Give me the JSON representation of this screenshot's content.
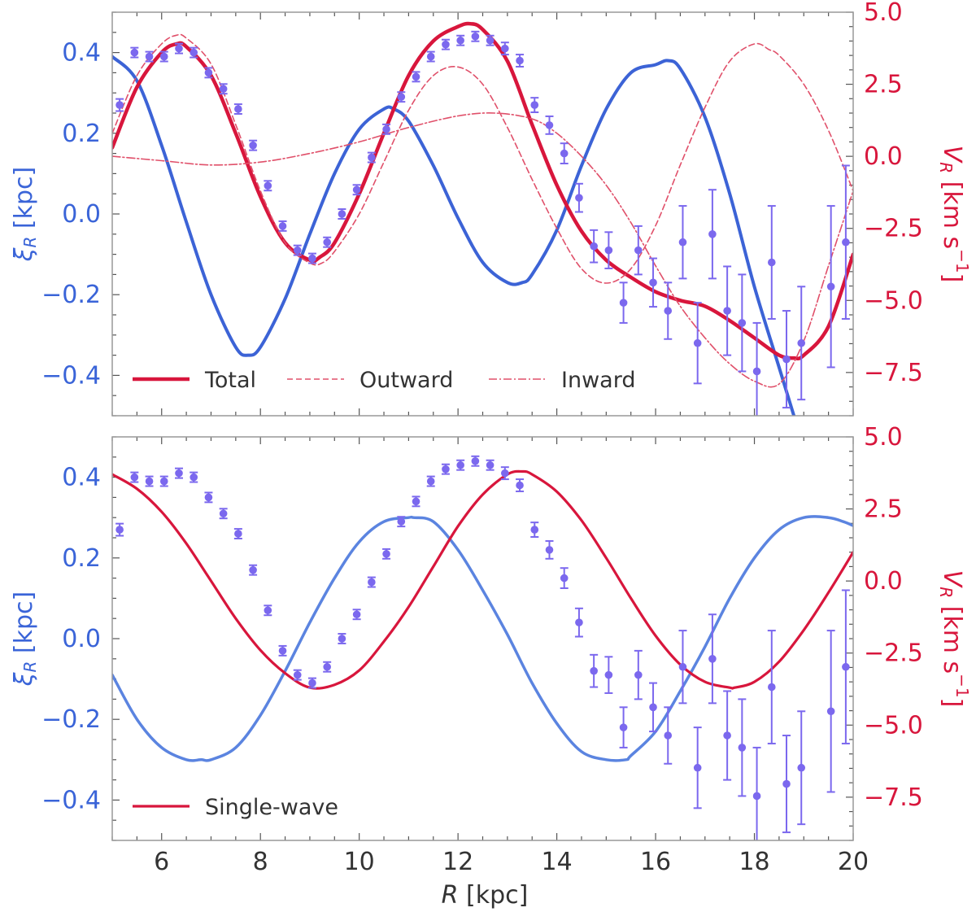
{
  "colors": {
    "xi_axis": "#3a64d8",
    "vr_axis": "#d8163c",
    "data_points": "#7b68ee",
    "xi_line": "#3c63d6",
    "xi_line_single": "#5b84e0",
    "vr_total": "#d8163c",
    "vr_components": "#e0506a",
    "text": "#333333",
    "frame": "#999999"
  },
  "chart_data": [
    {
      "type": "line",
      "panel": "top",
      "xlim": [
        5,
        20
      ],
      "ylim_left": [
        -0.5,
        0.5
      ],
      "ylim_right": [
        -9.0,
        5.0
      ],
      "ylabel_left": "ξR [kpc]",
      "ylabel_right": "VR [km s−1]",
      "xlabel": "",
      "left_ticks": [
        "0.4",
        "0.2",
        "0.0",
        "−0.2",
        "−0.4"
      ],
      "right_ticks": [
        "5.0",
        "2.5",
        "0.0",
        "−2.5",
        "−5.0",
        "−7.5"
      ],
      "legend": {
        "placement": "bottom-left",
        "entries": [
          "Total",
          "Outward",
          "Inward"
        ]
      },
      "series": [
        {
          "name": "",
          "axis": "left",
          "style": "solid",
          "width": 4,
          "x": [
            5.0,
            5.5,
            6.0,
            6.5,
            7.0,
            7.5,
            7.75,
            8.0,
            8.5,
            9.0,
            9.5,
            10.0,
            10.5,
            10.7,
            11.0,
            11.5,
            12.0,
            12.5,
            13.0,
            13.3,
            13.5,
            14.0,
            14.5,
            15.0,
            15.5,
            16.0,
            16.25,
            16.5,
            17.0,
            17.5,
            18.0,
            18.5,
            18.8
          ],
          "values": [
            0.39,
            0.33,
            0.17,
            -0.02,
            -0.2,
            -0.33,
            -0.35,
            -0.33,
            -0.21,
            -0.05,
            0.1,
            0.21,
            0.26,
            0.26,
            0.23,
            0.12,
            -0.01,
            -0.12,
            -0.17,
            -0.17,
            -0.15,
            -0.04,
            0.12,
            0.26,
            0.35,
            0.37,
            0.38,
            0.36,
            0.24,
            0.05,
            -0.18,
            -0.38,
            -0.5
          ]
        },
        {
          "name": "Total",
          "axis": "right",
          "style": "solid",
          "width": 4.5,
          "x": [
            5.0,
            5.5,
            6.0,
            6.3,
            6.5,
            7.0,
            7.5,
            8.0,
            8.5,
            9.0,
            9.2,
            9.5,
            10.0,
            10.5,
            11.0,
            11.5,
            12.0,
            12.25,
            12.5,
            13.0,
            13.5,
            14.0,
            14.5,
            15.0,
            15.5,
            16.0,
            16.5,
            17.0,
            17.5,
            18.0,
            18.5,
            18.8,
            19.0,
            19.5,
            20.0
          ],
          "values": [
            0.3,
            2.4,
            3.6,
            3.9,
            3.8,
            2.8,
            0.8,
            -1.4,
            -3.0,
            -3.6,
            -3.5,
            -3.0,
            -1.3,
            0.8,
            2.8,
            4.0,
            4.5,
            4.6,
            4.4,
            3.3,
            1.1,
            -1.0,
            -2.6,
            -3.6,
            -4.2,
            -4.7,
            -5.0,
            -5.2,
            -5.7,
            -6.3,
            -6.9,
            -7.0,
            -6.9,
            -5.9,
            -3.4
          ]
        },
        {
          "name": "Outward",
          "axis": "right",
          "style": "dashed",
          "width": 1.6,
          "x": [
            5.0,
            5.5,
            6.0,
            6.3,
            6.5,
            7.0,
            7.5,
            8.0,
            8.5,
            9.0,
            9.25,
            9.5,
            10.0,
            10.5,
            11.0,
            11.5,
            12.0,
            12.5,
            13.0,
            13.5,
            14.0,
            14.5,
            15.0,
            15.5,
            16.0,
            16.5,
            17.0,
            17.5,
            18.0,
            18.3,
            18.5,
            19.0,
            19.5,
            20.0
          ],
          "values": [
            0.8,
            2.8,
            3.9,
            4.2,
            4.1,
            3.2,
            1.1,
            -1.2,
            -3.0,
            -3.7,
            -3.7,
            -3.3,
            -2.0,
            -0.2,
            1.6,
            2.8,
            3.1,
            2.5,
            1.0,
            -0.8,
            -2.5,
            -3.9,
            -4.4,
            -3.9,
            -2.4,
            -0.3,
            1.7,
            3.3,
            3.9,
            3.7,
            3.5,
            2.5,
            0.9,
            -1.2
          ]
        },
        {
          "name": "Inward",
          "axis": "right",
          "style": "dashdot",
          "width": 1.6,
          "x": [
            5.0,
            6.0,
            7.0,
            8.0,
            9.0,
            10.0,
            11.0,
            12.0,
            12.75,
            13.5,
            14.0,
            14.5,
            15.0,
            15.5,
            16.0,
            16.5,
            17.0,
            17.5,
            18.0,
            18.5,
            19.0,
            19.5,
            20.0
          ],
          "values": [
            0.0,
            -0.15,
            -0.3,
            -0.2,
            0.1,
            0.5,
            1.0,
            1.4,
            1.5,
            1.3,
            0.8,
            0.0,
            -1.0,
            -2.3,
            -3.8,
            -5.2,
            -6.3,
            -7.2,
            -7.8,
            -7.9,
            -6.4,
            -3.8,
            -1.2
          ]
        },
        {
          "name": "",
          "axis": "left",
          "style": "points",
          "x": [
            5.15,
            5.45,
            5.75,
            6.05,
            6.35,
            6.65,
            6.95,
            7.25,
            7.55,
            7.85,
            8.15,
            8.45,
            8.75,
            9.05,
            9.35,
            9.65,
            9.95,
            10.25,
            10.55,
            10.85,
            11.15,
            11.45,
            11.75,
            12.05,
            12.35,
            12.65,
            12.95,
            13.25,
            13.55,
            13.85,
            14.15,
            14.45,
            14.75,
            15.05,
            15.35,
            15.65,
            15.95,
            16.25,
            16.55,
            16.85,
            17.15,
            17.45,
            17.75,
            18.05,
            18.35,
            18.65,
            18.95,
            19.55,
            19.85
          ],
          "values": [
            0.27,
            0.4,
            0.39,
            0.39,
            0.41,
            0.4,
            0.35,
            0.31,
            0.26,
            0.17,
            0.07,
            -0.03,
            -0.09,
            -0.11,
            -0.07,
            0.0,
            0.06,
            0.14,
            0.21,
            0.29,
            0.34,
            0.39,
            0.42,
            0.43,
            0.44,
            0.43,
            0.41,
            0.38,
            0.27,
            0.22,
            0.15,
            0.04,
            -0.08,
            -0.09,
            -0.22,
            -0.09,
            -0.17,
            -0.24,
            -0.07,
            -0.32,
            -0.05,
            -0.24,
            -0.27,
            -0.39,
            -0.12,
            -0.36,
            -0.32,
            -0.18,
            -0.07
          ],
          "errors": [
            0.015,
            0.012,
            0.012,
            0.012,
            0.012,
            0.012,
            0.012,
            0.012,
            0.012,
            0.012,
            0.012,
            0.012,
            0.012,
            0.012,
            0.012,
            0.012,
            0.012,
            0.012,
            0.012,
            0.012,
            0.012,
            0.012,
            0.012,
            0.012,
            0.012,
            0.012,
            0.015,
            0.015,
            0.018,
            0.022,
            0.025,
            0.035,
            0.04,
            0.045,
            0.05,
            0.06,
            0.06,
            0.07,
            0.09,
            0.1,
            0.11,
            0.11,
            0.12,
            0.12,
            0.14,
            0.12,
            0.14,
            0.2,
            0.19
          ]
        }
      ]
    },
    {
      "type": "line",
      "panel": "bottom",
      "xlim": [
        5,
        20
      ],
      "ylim_left": [
        -0.5,
        0.5
      ],
      "ylim_right": [
        -9.0,
        5.0
      ],
      "ylabel_left": "ξR [kpc]",
      "ylabel_right": "VR [km s−1]",
      "xlabel": "R [kpc]",
      "x_ticks": [
        "6",
        "8",
        "10",
        "12",
        "14",
        "16",
        "18",
        "20"
      ],
      "left_ticks": [
        "0.4",
        "0.2",
        "0.0",
        "−0.2",
        "−0.4"
      ],
      "right_ticks": [
        "5.0",
        "2.5",
        "0.0",
        "−2.5",
        "−5.0",
        "−7.5"
      ],
      "legend": {
        "placement": "bottom-left",
        "entries": [
          "Single-wave"
        ]
      },
      "series": [
        {
          "name": "",
          "axis": "left",
          "style": "solid",
          "width": 3.5,
          "x": [
            5.0,
            5.5,
            6.0,
            6.5,
            6.8,
            7.0,
            7.5,
            8.0,
            8.5,
            9.0,
            9.5,
            10.0,
            10.5,
            11.0,
            11.1,
            11.5,
            12.0,
            12.5,
            13.0,
            13.5,
            14.0,
            14.5,
            15.0,
            15.4,
            15.5,
            16.0,
            16.5,
            17.0,
            17.5,
            18.0,
            18.5,
            19.0,
            19.5,
            19.8,
            20.0
          ],
          "values": [
            -0.09,
            -0.2,
            -0.27,
            -0.3,
            -0.3,
            -0.3,
            -0.27,
            -0.19,
            -0.08,
            0.04,
            0.15,
            0.24,
            0.29,
            0.3,
            0.3,
            0.29,
            0.22,
            0.12,
            0.01,
            -0.11,
            -0.21,
            -0.28,
            -0.3,
            -0.3,
            -0.29,
            -0.23,
            -0.13,
            -0.02,
            0.1,
            0.2,
            0.27,
            0.3,
            0.3,
            0.29,
            0.28
          ]
        },
        {
          "name": "Single-wave",
          "axis": "right",
          "style": "solid",
          "width": 3.2,
          "x": [
            5.0,
            5.5,
            6.0,
            6.5,
            7.0,
            7.5,
            8.0,
            8.5,
            9.0,
            9.5,
            10.0,
            10.5,
            11.0,
            11.5,
            12.0,
            12.5,
            13.0,
            13.3,
            13.5,
            14.0,
            14.5,
            15.0,
            15.5,
            16.0,
            16.5,
            17.0,
            17.5,
            17.6,
            18.0,
            18.5,
            19.0,
            19.5,
            20.0
          ],
          "values": [
            3.7,
            3.2,
            2.4,
            1.3,
            0.0,
            -1.3,
            -2.4,
            -3.2,
            -3.7,
            -3.6,
            -3.1,
            -2.1,
            -0.9,
            0.5,
            1.9,
            3.0,
            3.7,
            3.8,
            3.7,
            3.1,
            2.1,
            0.8,
            -0.6,
            -1.9,
            -2.9,
            -3.5,
            -3.7,
            -3.7,
            -3.5,
            -2.8,
            -1.7,
            -0.4,
            1.0
          ]
        },
        {
          "name": "",
          "axis": "left",
          "style": "points",
          "x": [
            5.15,
            5.45,
            5.75,
            6.05,
            6.35,
            6.65,
            6.95,
            7.25,
            7.55,
            7.85,
            8.15,
            8.45,
            8.75,
            9.05,
            9.35,
            9.65,
            9.95,
            10.25,
            10.55,
            10.85,
            11.15,
            11.45,
            11.75,
            12.05,
            12.35,
            12.65,
            12.95,
            13.25,
            13.55,
            13.85,
            14.15,
            14.45,
            14.75,
            15.05,
            15.35,
            15.65,
            15.95,
            16.25,
            16.55,
            16.85,
            17.15,
            17.45,
            17.75,
            18.05,
            18.35,
            18.65,
            18.95,
            19.55,
            19.85
          ],
          "values": [
            0.27,
            0.4,
            0.39,
            0.39,
            0.41,
            0.4,
            0.35,
            0.31,
            0.26,
            0.17,
            0.07,
            -0.03,
            -0.09,
            -0.11,
            -0.07,
            0.0,
            0.06,
            0.14,
            0.21,
            0.29,
            0.34,
            0.39,
            0.42,
            0.43,
            0.44,
            0.43,
            0.41,
            0.38,
            0.27,
            0.22,
            0.15,
            0.04,
            -0.08,
            -0.09,
            -0.22,
            -0.09,
            -0.17,
            -0.24,
            -0.07,
            -0.32,
            -0.05,
            -0.24,
            -0.27,
            -0.39,
            -0.12,
            -0.36,
            -0.32,
            -0.18,
            -0.07
          ],
          "errors": [
            0.015,
            0.012,
            0.012,
            0.012,
            0.012,
            0.012,
            0.012,
            0.012,
            0.012,
            0.012,
            0.012,
            0.012,
            0.012,
            0.012,
            0.012,
            0.012,
            0.012,
            0.012,
            0.012,
            0.012,
            0.012,
            0.012,
            0.012,
            0.012,
            0.012,
            0.012,
            0.015,
            0.015,
            0.018,
            0.022,
            0.025,
            0.035,
            0.04,
            0.045,
            0.05,
            0.06,
            0.06,
            0.07,
            0.09,
            0.1,
            0.11,
            0.11,
            0.12,
            0.12,
            0.14,
            0.12,
            0.14,
            0.2,
            0.19
          ]
        }
      ]
    }
  ]
}
